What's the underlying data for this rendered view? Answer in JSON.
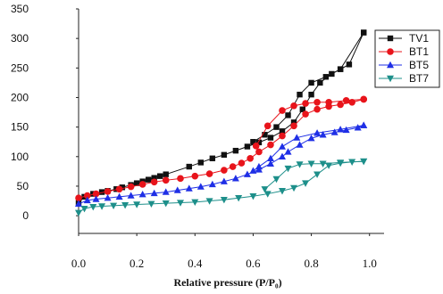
{
  "chart_data": {
    "type": "scatter",
    "xlabel": "Relative pressure (P/P₀)",
    "ylabel": "",
    "xlim": [
      0,
      1.05
    ],
    "ylim": [
      -30,
      350
    ],
    "xticks": [
      0.0,
      0.2,
      0.4,
      0.6,
      0.8,
      1.0
    ],
    "xtick_labels": [
      "0.0",
      "0.2",
      "0.4",
      "0.6",
      "0.8",
      "1.0"
    ],
    "yticks": [
      0,
      50,
      100,
      150,
      200,
      250,
      300,
      350
    ],
    "ytick_labels": [
      "0",
      "50",
      "100",
      "150",
      "200",
      "250",
      "300",
      "350"
    ],
    "grid": false,
    "legend_position": "top-right",
    "series": [
      {
        "name": "TV1",
        "color": "#111111",
        "marker": "square",
        "adsorption": [
          [
            0.0,
            22
          ],
          [
            0.02,
            32
          ],
          [
            0.05,
            37
          ],
          [
            0.08,
            40
          ],
          [
            0.1,
            42
          ],
          [
            0.13,
            45
          ],
          [
            0.15,
            48
          ],
          [
            0.18,
            52
          ],
          [
            0.2,
            55
          ],
          [
            0.22,
            58
          ],
          [
            0.24,
            61
          ],
          [
            0.26,
            64
          ],
          [
            0.28,
            67
          ],
          [
            0.3,
            70
          ],
          [
            0.38,
            83
          ],
          [
            0.42,
            90
          ],
          [
            0.46,
            97
          ],
          [
            0.5,
            103
          ],
          [
            0.54,
            110
          ],
          [
            0.58,
            117
          ],
          [
            0.62,
            124
          ],
          [
            0.66,
            132
          ],
          [
            0.7,
            143
          ],
          [
            0.74,
            158
          ],
          [
            0.77,
            180
          ],
          [
            0.8,
            205
          ],
          [
            0.83,
            225
          ],
          [
            0.87,
            240
          ],
          [
            0.9,
            248
          ],
          [
            0.93,
            256
          ],
          [
            0.98,
            310
          ]
        ],
        "desorption": [
          [
            0.98,
            310
          ],
          [
            0.9,
            248
          ],
          [
            0.85,
            235
          ],
          [
            0.8,
            225
          ],
          [
            0.76,
            205
          ],
          [
            0.72,
            170
          ],
          [
            0.68,
            150
          ],
          [
            0.64,
            137
          ],
          [
            0.6,
            125
          ]
        ]
      },
      {
        "name": "BT1",
        "color": "#e8141b",
        "marker": "circle",
        "adsorption": [
          [
            0.0,
            30
          ],
          [
            0.03,
            34
          ],
          [
            0.06,
            37
          ],
          [
            0.1,
            41
          ],
          [
            0.14,
            45
          ],
          [
            0.18,
            49
          ],
          [
            0.22,
            53
          ],
          [
            0.26,
            57
          ],
          [
            0.3,
            60
          ],
          [
            0.35,
            63
          ],
          [
            0.4,
            67
          ],
          [
            0.45,
            71
          ],
          [
            0.5,
            77
          ],
          [
            0.53,
            83
          ],
          [
            0.56,
            89
          ],
          [
            0.59,
            97
          ],
          [
            0.62,
            108
          ],
          [
            0.66,
            120
          ],
          [
            0.7,
            135
          ],
          [
            0.74,
            152
          ],
          [
            0.78,
            172
          ],
          [
            0.82,
            180
          ],
          [
            0.86,
            185
          ],
          [
            0.9,
            188
          ],
          [
            0.94,
            192
          ],
          [
            0.98,
            197
          ]
        ],
        "desorption": [
          [
            0.98,
            197
          ],
          [
            0.92,
            195
          ],
          [
            0.86,
            192
          ],
          [
            0.82,
            192
          ],
          [
            0.78,
            190
          ],
          [
            0.74,
            186
          ],
          [
            0.7,
            178
          ],
          [
            0.65,
            152
          ],
          [
            0.61,
            118
          ]
        ]
      },
      {
        "name": "BT5",
        "color": "#1f2fe6",
        "marker": "triangle-up",
        "adsorption": [
          [
            0.0,
            20
          ],
          [
            0.03,
            26
          ],
          [
            0.06,
            28
          ],
          [
            0.1,
            30
          ],
          [
            0.14,
            32
          ],
          [
            0.18,
            34
          ],
          [
            0.22,
            36
          ],
          [
            0.26,
            38
          ],
          [
            0.3,
            40
          ],
          [
            0.34,
            43
          ],
          [
            0.38,
            46
          ],
          [
            0.42,
            49
          ],
          [
            0.46,
            53
          ],
          [
            0.5,
            58
          ],
          [
            0.54,
            63
          ],
          [
            0.58,
            70
          ],
          [
            0.62,
            78
          ],
          [
            0.66,
            88
          ],
          [
            0.7,
            100
          ],
          [
            0.72,
            108
          ],
          [
            0.76,
            120
          ],
          [
            0.8,
            131
          ],
          [
            0.84,
            137
          ],
          [
            0.88,
            141
          ],
          [
            0.92,
            145
          ],
          [
            0.96,
            149
          ],
          [
            0.98,
            153
          ]
        ],
        "desorption": [
          [
            0.98,
            153
          ],
          [
            0.9,
            146
          ],
          [
            0.82,
            140
          ],
          [
            0.75,
            132
          ],
          [
            0.7,
            117
          ],
          [
            0.66,
            97
          ],
          [
            0.62,
            83
          ],
          [
            0.6,
            76
          ]
        ]
      },
      {
        "name": "BT7",
        "color": "#1d8f8a",
        "marker": "triangle-down",
        "adsorption": [
          [
            0.0,
            5
          ],
          [
            0.02,
            12
          ],
          [
            0.05,
            15
          ],
          [
            0.08,
            16
          ],
          [
            0.12,
            17
          ],
          [
            0.16,
            18
          ],
          [
            0.2,
            19
          ],
          [
            0.25,
            20
          ],
          [
            0.3,
            21
          ],
          [
            0.35,
            22
          ],
          [
            0.4,
            23
          ],
          [
            0.45,
            25
          ],
          [
            0.5,
            27
          ],
          [
            0.55,
            30
          ],
          [
            0.6,
            33
          ],
          [
            0.65,
            37
          ],
          [
            0.7,
            42
          ],
          [
            0.74,
            47
          ],
          [
            0.78,
            55
          ],
          [
            0.82,
            70
          ],
          [
            0.86,
            85
          ],
          [
            0.9,
            89
          ],
          [
            0.94,
            91
          ],
          [
            0.98,
            92
          ]
        ],
        "desorption": [
          [
            0.98,
            92
          ],
          [
            0.9,
            90
          ],
          [
            0.84,
            88
          ],
          [
            0.8,
            88
          ],
          [
            0.76,
            87
          ],
          [
            0.72,
            80
          ],
          [
            0.68,
            62
          ],
          [
            0.64,
            45
          ]
        ]
      }
    ]
  }
}
